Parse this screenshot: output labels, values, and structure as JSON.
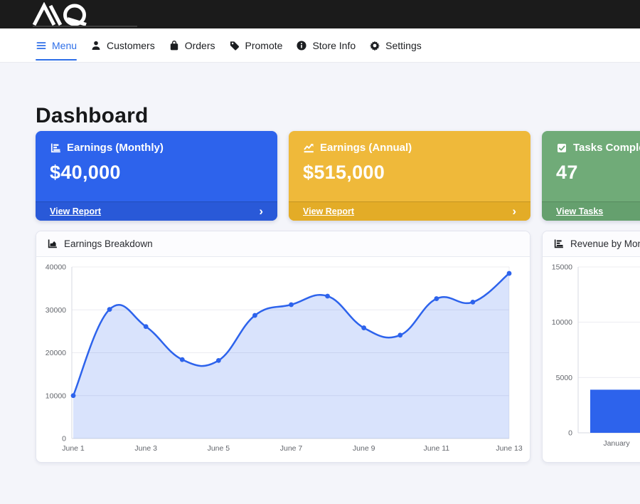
{
  "topbar": {
    "logo_text": "AQ",
    "bg": "#1b1b1b"
  },
  "nav": {
    "active_color": "#2e6fe8",
    "items": [
      {
        "id": "menu",
        "label": "Menu",
        "active": true
      },
      {
        "id": "customers",
        "label": "Customers",
        "active": false
      },
      {
        "id": "orders",
        "label": "Orders",
        "active": false
      },
      {
        "id": "promote",
        "label": "Promote",
        "active": false
      },
      {
        "id": "store-info",
        "label": "Store Info",
        "active": false
      },
      {
        "id": "settings",
        "label": "Settings",
        "active": false
      }
    ]
  },
  "page_title": "Dashboard",
  "stat_cards": [
    {
      "title": "Earnings (Monthly)",
      "value": "$40,000",
      "link_label": "View Report",
      "chevron": "›",
      "bg": "#2d63ec",
      "footer_bg": "#2959d8",
      "icon": "horizontal-bar-chart-icon"
    },
    {
      "title": "Earnings (Annual)",
      "value": "$515,000",
      "link_label": "View Report",
      "chevron": "›",
      "bg": "#efb93a",
      "footer_bg": "#e3ac27",
      "icon": "line-chart-icon"
    },
    {
      "title": "Tasks Completed",
      "value": "47",
      "link_label": "View Tasks",
      "chevron": "›",
      "bg": "#70ab78",
      "footer_bg": "#65a06e",
      "icon": "check-square-icon"
    }
  ],
  "chart_data": [
    {
      "type": "area",
      "title": "Earnings Breakdown",
      "x": [
        "June 1",
        "June 2",
        "June 3",
        "June 4",
        "June 5",
        "June 6",
        "June 7",
        "June 8",
        "June 9",
        "June 10",
        "June 11",
        "June 12",
        "June 13"
      ],
      "x_ticks": [
        "June 1",
        "June 3",
        "June 5",
        "June 7",
        "June 9",
        "June 11",
        "June 13"
      ],
      "values": [
        10000,
        30100,
        26100,
        18400,
        18200,
        28700,
        31200,
        33200,
        25800,
        24100,
        32600,
        31800,
        38500
      ],
      "ylim": [
        0,
        40000
      ],
      "y_ticks": [
        0,
        10000,
        20000,
        30000,
        40000
      ],
      "line_color": "#2d63ec",
      "fill_color": "rgba(45,99,236,0.18)",
      "grid": true,
      "legend": "none"
    },
    {
      "type": "bar",
      "title": "Revenue by Month",
      "categories": [
        "January"
      ],
      "values": [
        3900
      ],
      "ylim": [
        0,
        15000
      ],
      "y_ticks": [
        0,
        5000,
        10000,
        15000
      ],
      "bar_color": "#2d63ec",
      "grid": true,
      "legend": "none"
    }
  ]
}
